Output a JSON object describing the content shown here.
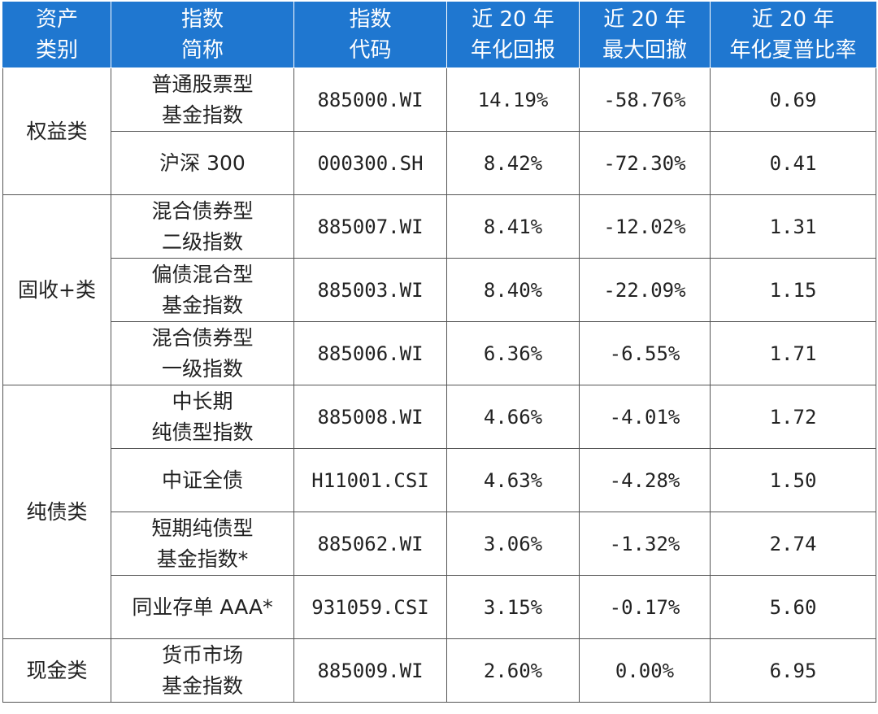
{
  "header": {
    "col1": [
      "资产",
      "类别"
    ],
    "col2": [
      "指数",
      "简称"
    ],
    "col3": [
      "指数",
      "代码"
    ],
    "col4": [
      "近 20 年",
      "年化回报"
    ],
    "col5": [
      "近 20 年",
      "最大回撤"
    ],
    "col6": [
      "近 20 年",
      "年化夏普比率"
    ]
  },
  "categories": [
    "权益类",
    "固收+类",
    "纯债类",
    "现金类"
  ],
  "rows": [
    {
      "name": [
        "普通股票型",
        "基金指数"
      ],
      "code": "885000.WI",
      "ret": "14.19%",
      "mdd": "-58.76%",
      "sharpe": "0.69"
    },
    {
      "name": [
        "沪深 300"
      ],
      "code": "000300.SH",
      "ret": "8.42%",
      "mdd": "-72.30%",
      "sharpe": "0.41"
    },
    {
      "name": [
        "混合债券型",
        "二级指数"
      ],
      "code": "885007.WI",
      "ret": "8.41%",
      "mdd": "-12.02%",
      "sharpe": "1.31"
    },
    {
      "name": [
        "偏债混合型",
        "基金指数"
      ],
      "code": "885003.WI",
      "ret": "8.40%",
      "mdd": "-22.09%",
      "sharpe": "1.15"
    },
    {
      "name": [
        "混合债券型",
        "一级指数"
      ],
      "code": "885006.WI",
      "ret": "6.36%",
      "mdd": "-6.55%",
      "sharpe": "1.71"
    },
    {
      "name": [
        "中长期",
        "纯债型指数"
      ],
      "code": "885008.WI",
      "ret": "4.66%",
      "mdd": "-4.01%",
      "sharpe": "1.72"
    },
    {
      "name": [
        "中证全债"
      ],
      "code": "H11001.CSI",
      "ret": "4.63%",
      "mdd": "-4.28%",
      "sharpe": "1.50"
    },
    {
      "name": [
        "短期纯债型",
        "基金指数*"
      ],
      "code": "885062.WI",
      "ret": "3.06%",
      "mdd": "-1.32%",
      "sharpe": "2.74"
    },
    {
      "name": [
        "同业存单 AAA*"
      ],
      "code": "931059.CSI",
      "ret": "3.15%",
      "mdd": "-0.17%",
      "sharpe": "5.60"
    },
    {
      "name": [
        "货币市场",
        "基金指数"
      ],
      "code": "885009.WI",
      "ret": "2.60%",
      "mdd": "0.00%",
      "sharpe": "6.95"
    }
  ],
  "colors": {
    "header_bg": "#1f77d0",
    "header_text": "#ffffff",
    "border": "#555555"
  }
}
